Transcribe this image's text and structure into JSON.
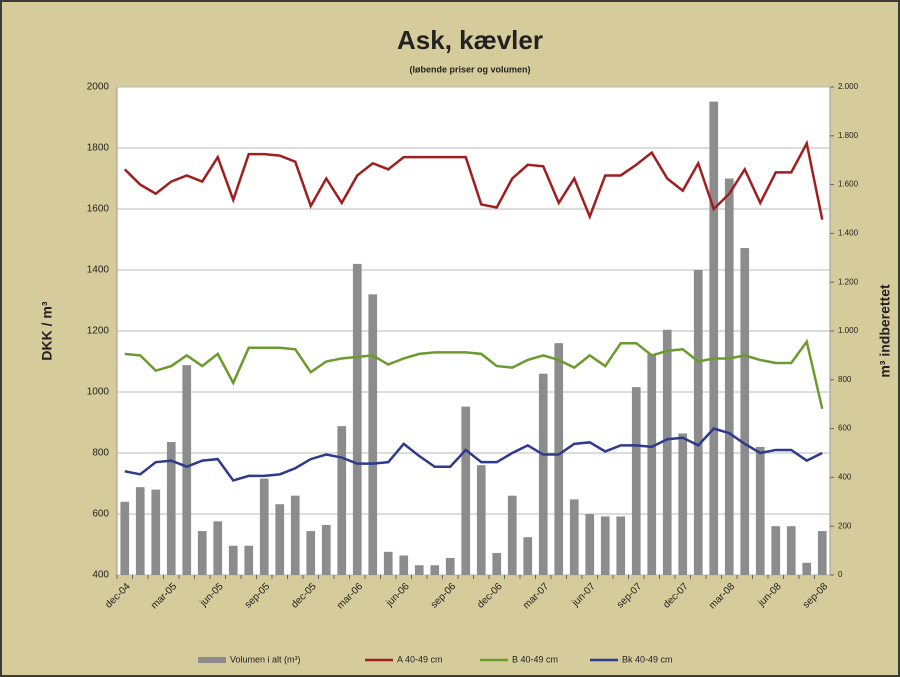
{
  "chart_data": {
    "type": "combo",
    "title": "Ask, kævler",
    "subtitle": "(løbende priser og volumen)",
    "y_label": "DKK / m³",
    "y2_label": "m³ indberettet",
    "categories": [
      "dec-04",
      null,
      null,
      "mar-05",
      null,
      null,
      "jun-05",
      null,
      null,
      "sep-05",
      null,
      null,
      "dec-05",
      null,
      null,
      "mar-06",
      null,
      null,
      "jun-06",
      null,
      null,
      "sep-06",
      null,
      null,
      "dec-06",
      null,
      null,
      "mar-07",
      null,
      null,
      "jun-07",
      null,
      null,
      "sep-07",
      null,
      null,
      "dec-07",
      null,
      null,
      "mar-08",
      null,
      null,
      "jun-08",
      null,
      null,
      "sep-08"
    ],
    "ylim": [
      400,
      2000
    ],
    "yticks": [
      400,
      600,
      800,
      1000,
      1200,
      1400,
      1600,
      1800,
      2000
    ],
    "y2lim": [
      0,
      2000
    ],
    "y2ticks": [
      0,
      200,
      400,
      600,
      800,
      {
        "value": 1000,
        "label": "1.000"
      },
      {
        "value": 1200,
        "label": "1.200"
      },
      {
        "value": 1400,
        "label": "1.400"
      },
      {
        "value": 1600,
        "label": "1.600"
      },
      {
        "value": 1800,
        "label": "1.800"
      },
      {
        "value": 2000,
        "label": "2.000"
      }
    ],
    "grid": true,
    "legend": "bottom",
    "series": [
      {
        "name": "Volumen i alt (m³)",
        "type": "bar",
        "axis": "y2",
        "color": "#8c8c8c",
        "values": [
          300,
          360,
          350,
          545,
          860,
          180,
          220,
          120,
          120,
          395,
          290,
          325,
          180,
          205,
          610,
          1275,
          1150,
          95,
          80,
          40,
          40,
          70,
          690,
          450,
          90,
          325,
          155,
          825,
          950,
          310,
          250,
          240,
          240,
          770,
          905,
          1005,
          580,
          1250,
          1940,
          1625,
          1340,
          525,
          200,
          200,
          50,
          180
        ]
      },
      {
        "name": "A 40-49 cm",
        "type": "line",
        "color": "#a01e1e",
        "values": [
          1730,
          1680,
          1650,
          1690,
          1710,
          1690,
          1770,
          1630,
          1780,
          1780,
          1775,
          1755,
          1610,
          1700,
          1620,
          1710,
          1750,
          1730,
          1770,
          1770,
          1770,
          1770,
          1770,
          1615,
          1605,
          1700,
          1745,
          1740,
          1620,
          1700,
          1575,
          1710,
          1710,
          1745,
          1785,
          1700,
          1660,
          1750,
          1600,
          1650,
          1730,
          1620,
          1720,
          1720,
          1815,
          1565
        ]
      },
      {
        "name": "B 40-49 cm",
        "type": "line",
        "color": "#6b9a2e",
        "values": [
          1125,
          1120,
          1070,
          1085,
          1120,
          1085,
          1125,
          1030,
          1145,
          1145,
          1145,
          1140,
          1065,
          1100,
          1110,
          1115,
          1120,
          1090,
          1110,
          1125,
          1130,
          1130,
          1130,
          1125,
          1085,
          1080,
          1105,
          1120,
          1105,
          1080,
          1120,
          1085,
          1160,
          1160,
          1120,
          1135,
          1140,
          1100,
          1110,
          1110,
          1120,
          1105,
          1095,
          1095,
          1165,
          945
        ]
      },
      {
        "name": "Bk 40-49 cm",
        "type": "line",
        "color": "#2e3a8c",
        "values": [
          740,
          730,
          770,
          775,
          755,
          775,
          780,
          710,
          725,
          725,
          730,
          750,
          780,
          795,
          785,
          765,
          765,
          770,
          830,
          790,
          755,
          755,
          810,
          770,
          770,
          800,
          825,
          795,
          795,
          830,
          835,
          805,
          825,
          825,
          820,
          845,
          850,
          825,
          880,
          865,
          830,
          800,
          810,
          810,
          775,
          800
        ]
      }
    ]
  }
}
